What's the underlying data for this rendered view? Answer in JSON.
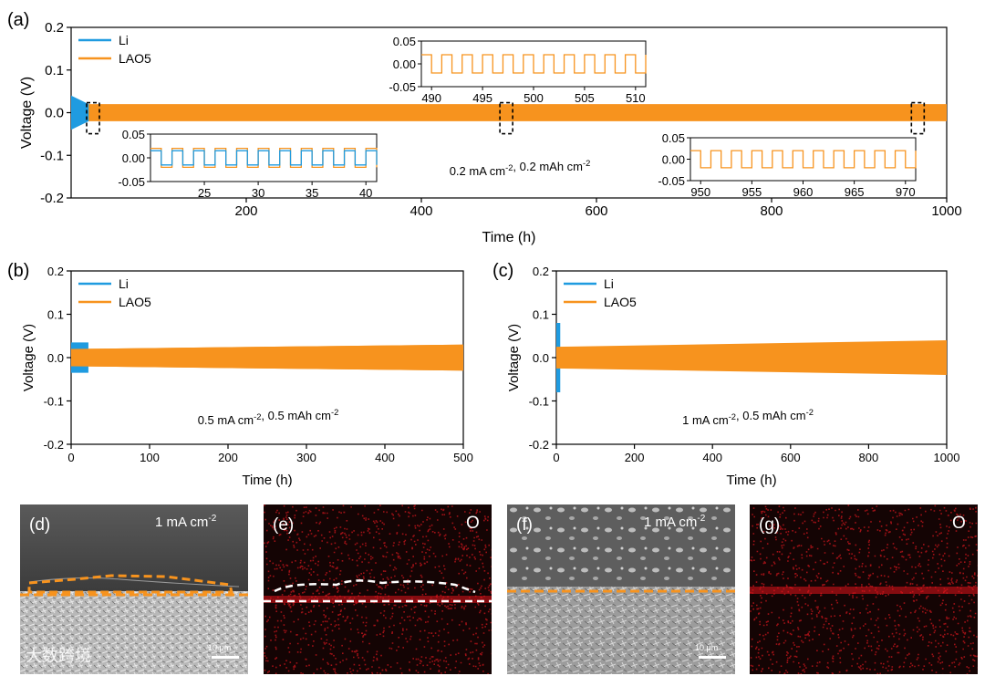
{
  "colors": {
    "li": "#1f9be0",
    "lao5": "#f7931e",
    "box": "#000000"
  },
  "chart_data": [
    {
      "panel": "(a)",
      "type": "line",
      "xlabel": "Time (h)",
      "ylabel": "Voltage (V)",
      "xlim": [
        0,
        1000
      ],
      "ylim": [
        -0.2,
        0.2
      ],
      "xticks": [
        200,
        400,
        600,
        800,
        1000
      ],
      "yticks": [
        -0.2,
        -0.1,
        0.0,
        0.1,
        0.2
      ],
      "xtick_labels": [
        "200",
        "400",
        "600",
        "800",
        "1000"
      ],
      "ytick_labels": [
        "-0.2",
        "-0.1",
        "0.0",
        "0.1",
        "0.2"
      ],
      "legend": [
        "Li",
        "LAO5"
      ],
      "legend_position": "top-left",
      "annotation": "0.2 mA cm-2, 0.2 mAh cm-2",
      "series": [
        {
          "name": "Li",
          "x_end": 20,
          "amplitude_start": 0.04,
          "amplitude_end": 0.02
        },
        {
          "name": "LAO5",
          "x_end": 1000,
          "amplitude_start": 0.02,
          "amplitude_end": 0.02
        }
      ],
      "insets": [
        {
          "xlim": [
            20,
            41
          ],
          "ylim": [
            -0.05,
            0.05
          ],
          "xticks": [
            25,
            30,
            35,
            40
          ],
          "yticks": [
            -0.05,
            0.0,
            0.05
          ],
          "xtick_labels": [
            "25",
            "30",
            "35",
            "40"
          ],
          "ytick_labels": [
            "-0.05",
            "0.00",
            "0.05"
          ],
          "series": [
            {
              "name": "LAO5",
              "amplitude": 0.02,
              "period": 2
            },
            {
              "name": "Li",
              "amplitude": 0.015,
              "period": 2
            }
          ]
        },
        {
          "xlim": [
            489,
            511
          ],
          "ylim": [
            -0.05,
            0.05
          ],
          "xticks": [
            490,
            495,
            500,
            505,
            510
          ],
          "yticks": [
            -0.05,
            0.0,
            0.05
          ],
          "xtick_labels": [
            "490",
            "495",
            "500",
            "505",
            "510"
          ],
          "ytick_labels": [
            "-0.05",
            "0.00",
            "0.05"
          ],
          "series": [
            {
              "name": "LAO5",
              "amplitude": 0.02,
              "period": 2
            }
          ]
        },
        {
          "xlim": [
            949,
            971
          ],
          "ylim": [
            -0.05,
            0.05
          ],
          "xticks": [
            950,
            955,
            960,
            965,
            970
          ],
          "yticks": [
            -0.05,
            0.0,
            0.05
          ],
          "xtick_labels": [
            "950",
            "955",
            "960",
            "965",
            "970"
          ],
          "ytick_labels": [
            "-0.05",
            "0.00",
            "0.05"
          ],
          "series": [
            {
              "name": "LAO5",
              "amplitude": 0.02,
              "period": 2
            }
          ]
        }
      ],
      "highlight_boxes_x": [
        25,
        497,
        967
      ]
    },
    {
      "panel": "(b)",
      "type": "line",
      "xlabel": "Time (h)",
      "ylabel": "Voltage (V)",
      "xlim": [
        0,
        500
      ],
      "ylim": [
        -0.2,
        0.2
      ],
      "xticks": [
        0,
        100,
        200,
        300,
        400,
        500
      ],
      "yticks": [
        -0.2,
        -0.1,
        0.0,
        0.1,
        0.2
      ],
      "xtick_labels": [
        "0",
        "100",
        "200",
        "300",
        "400",
        "500"
      ],
      "ytick_labels": [
        "-0.2",
        "-0.1",
        "0.0",
        "0.1",
        "0.2"
      ],
      "legend": [
        "Li",
        "LAO5"
      ],
      "legend_position": "top-left",
      "annotation": "0.5 mA cm-2, 0.5 mAh cm-2",
      "series": [
        {
          "name": "Li",
          "x_end": 22,
          "amplitude_start": 0.035,
          "amplitude_end": 0.035
        },
        {
          "name": "LAO5",
          "x_end": 500,
          "amplitude_start": 0.02,
          "amplitude_end": 0.03
        }
      ]
    },
    {
      "panel": "(c)",
      "type": "line",
      "xlabel": "Time (h)",
      "ylabel": "Voltage (V)",
      "xlim": [
        0,
        1000
      ],
      "ylim": [
        -0.2,
        0.2
      ],
      "xticks": [
        0,
        200,
        400,
        600,
        800,
        1000
      ],
      "yticks": [
        -0.2,
        -0.1,
        0.0,
        0.1,
        0.2
      ],
      "xtick_labels": [
        "0",
        "200",
        "400",
        "600",
        "800",
        "1000"
      ],
      "ytick_labels": [
        "-0.2",
        "-0.1",
        "0.0",
        "0.1",
        "0.2"
      ],
      "legend": [
        "Li",
        "LAO5"
      ],
      "legend_position": "top-left",
      "annotation": "1 mA cm-2, 0.5 mAh cm-2",
      "series": [
        {
          "name": "Li",
          "x_end": 10,
          "amplitude_start": 0.08,
          "amplitude_end": 0.08
        },
        {
          "name": "LAO5",
          "x_end": 1000,
          "amplitude_start": 0.025,
          "amplitude_end": 0.04
        }
      ]
    }
  ],
  "image_panels": [
    {
      "label": "(d)",
      "condition": "1 mA cm",
      "condition_sup": "-2",
      "scale": "10 μm",
      "type": "sem",
      "tone": "light"
    },
    {
      "label": "(e)",
      "element": "O",
      "type": "map"
    },
    {
      "label": "(f)",
      "condition": "1 mA cm",
      "condition_sup": "-2",
      "scale": "10 μm",
      "type": "sem",
      "tone": "light"
    },
    {
      "label": "(g)",
      "element": "O",
      "type": "map"
    }
  ],
  "watermark": "大数跨境"
}
